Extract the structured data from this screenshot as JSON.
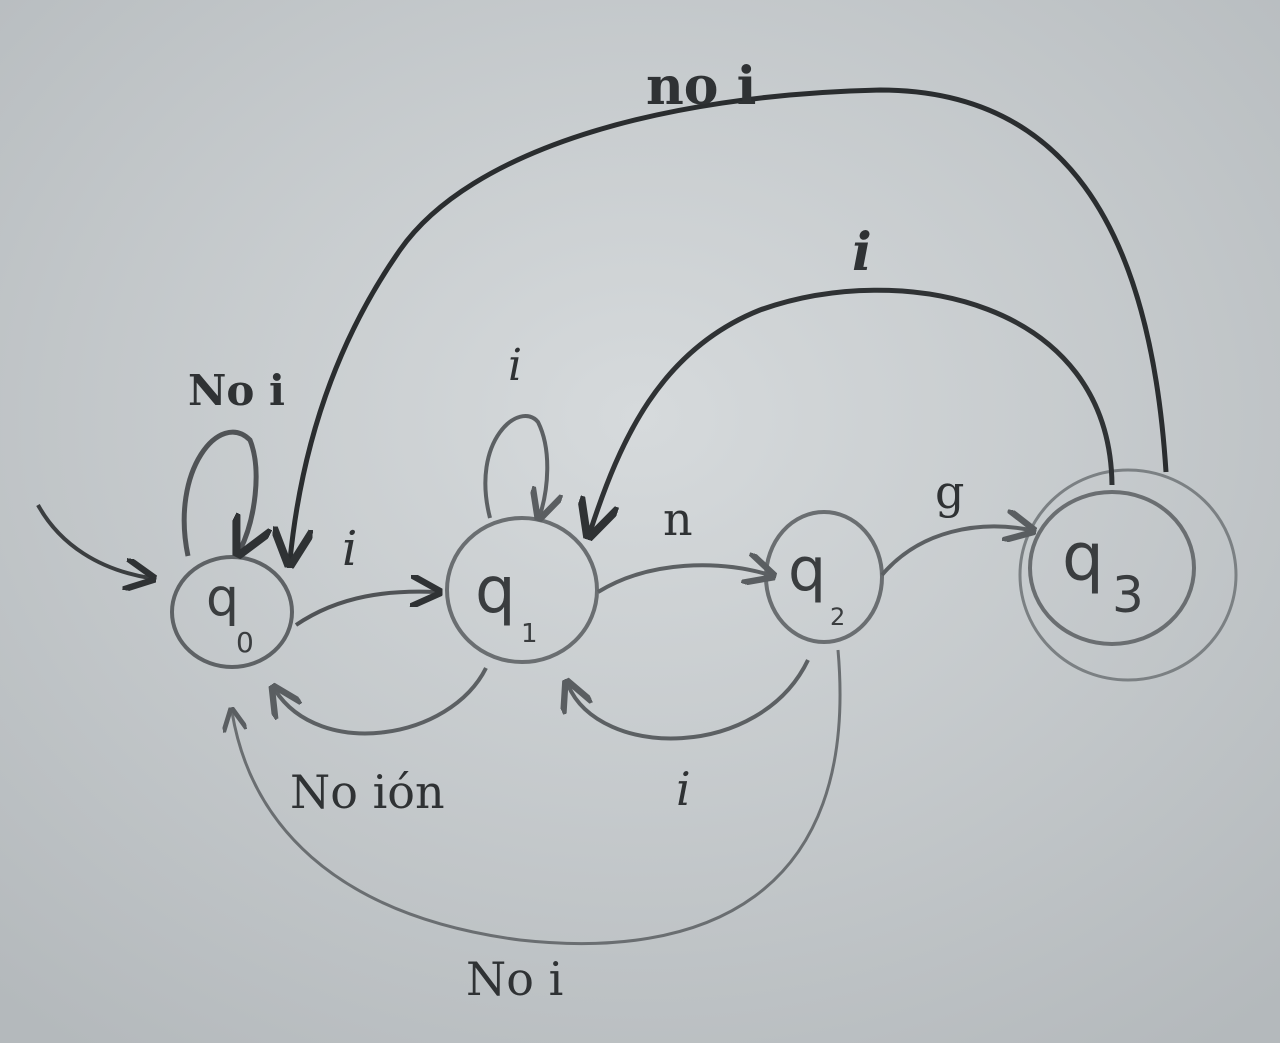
{
  "diagram": {
    "states": [
      {
        "id": "q0",
        "label": "q",
        "subscript": "0"
      },
      {
        "id": "q1",
        "label": "q",
        "subscript": "1"
      },
      {
        "id": "q2",
        "label": "q",
        "subscript": "2"
      },
      {
        "id": "q3",
        "label": "q",
        "subscript": "3"
      }
    ],
    "transitions": [
      {
        "from": "q0",
        "to": "q0",
        "label": "No i"
      },
      {
        "from": "q0",
        "to": "q1",
        "label": "i"
      },
      {
        "from": "q1",
        "to": "q1",
        "label": "i"
      },
      {
        "from": "q1",
        "to": "q2",
        "label": "n"
      },
      {
        "from": "q2",
        "to": "q3",
        "label": "g"
      },
      {
        "from": "q1",
        "to": "q0",
        "label": "No ión"
      },
      {
        "from": "q2",
        "to": "q1",
        "label": "i"
      },
      {
        "from": "q2",
        "to": "q0",
        "label": "No i"
      },
      {
        "from": "q3",
        "to": "q1",
        "label": "i"
      },
      {
        "from": "q3",
        "to": "q0",
        "label": "no i"
      }
    ],
    "start_state": "q0",
    "accept_states": [
      "q3"
    ]
  },
  "colors": {
    "board": "#c8cdd0",
    "ink_dark": "#2f3234",
    "ink_light": "#6e7376"
  }
}
